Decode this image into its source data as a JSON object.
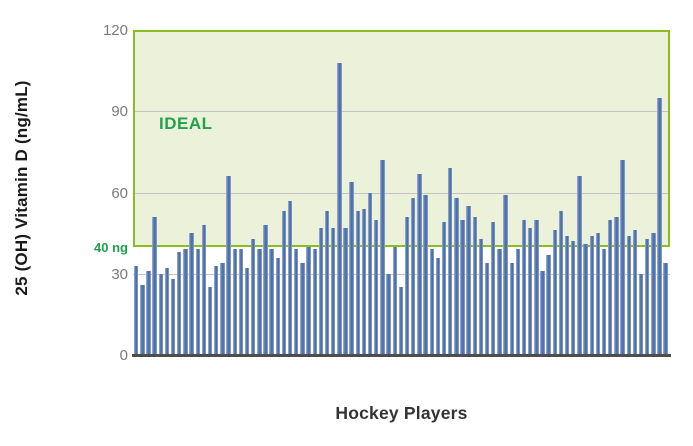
{
  "chart_data": {
    "type": "bar",
    "title": "",
    "xlabel": "Hockey Players",
    "ylabel": "25 (OH) Vitamin D (ng/mL)",
    "ylim": [
      0,
      120
    ],
    "yticks": [
      {
        "label": "120",
        "value": 120
      },
      {
        "label": "90",
        "value": 90
      },
      {
        "label": "60",
        "value": 60
      },
      {
        "label": "30",
        "value": 30
      },
      {
        "label": "0",
        "value": 0
      }
    ],
    "gridlines": [
      90,
      60,
      30
    ],
    "threshold": {
      "label": "40 ng",
      "value": 40
    },
    "ideal_band": {
      "label": "IDEAL",
      "from": 40,
      "to": 120
    },
    "legend": "none",
    "grid": "horizontal",
    "values": [
      33,
      26,
      31,
      51,
      30,
      32,
      28,
      38,
      39,
      45,
      39,
      48,
      25,
      33,
      34,
      66,
      39,
      39,
      32,
      43,
      39,
      48,
      39,
      36,
      53,
      57,
      39,
      34,
      40,
      39,
      47,
      53,
      47,
      108,
      47,
      64,
      53,
      54,
      60,
      50,
      72,
      30,
      40,
      25,
      51,
      58,
      67,
      59,
      39,
      36,
      49,
      69,
      58,
      50,
      55,
      51,
      43,
      34,
      49,
      39,
      59,
      34,
      39,
      50,
      47,
      50,
      31,
      37,
      46,
      53,
      44,
      42,
      66,
      41,
      44,
      45,
      39,
      50,
      51,
      72,
      44,
      46,
      30,
      43,
      45,
      95,
      34
    ],
    "colors": {
      "bar": "#44669f",
      "bar_highlight": "#a3b6db",
      "ideal_fill": "#ecf2da",
      "ideal_border": "#8abd20",
      "ideal_text": "#22a14c",
      "threshold_text": "#1fa04a",
      "tick_text": "#7b7b7b",
      "axis_line": "#4d4d4d",
      "gridline": "#c3c3c3",
      "axis_title": "#333333"
    }
  }
}
